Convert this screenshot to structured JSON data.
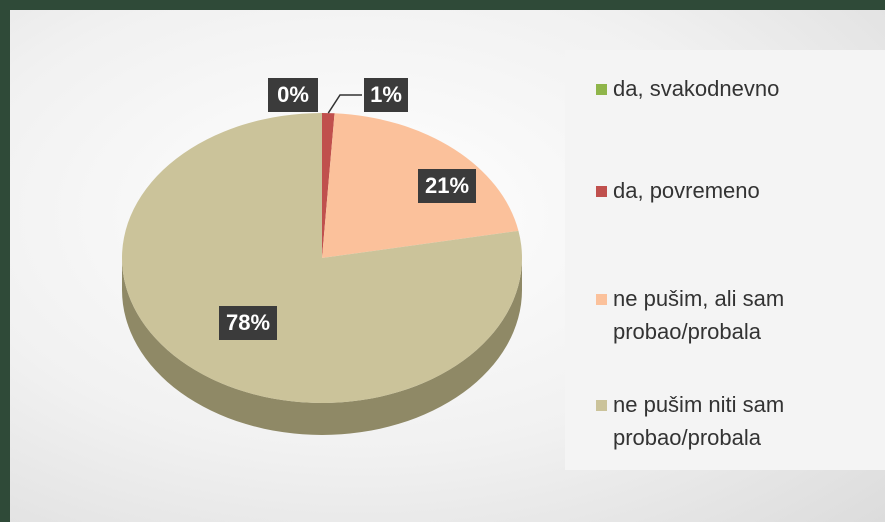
{
  "chart_data": {
    "type": "pie",
    "categories": [
      "da, svakodnevno",
      "da, povremeno",
      "ne pušim, ali sam probao/probala",
      "ne pušim niti sam probao/probala"
    ],
    "values": [
      0,
      1,
      21,
      78
    ],
    "value_labels": [
      "0%",
      "1%",
      "21%",
      "78%"
    ],
    "colors": [
      "#8fb54a",
      "#c0504d",
      "#fbc19b",
      "#cbc39a"
    ],
    "legend": "right"
  }
}
